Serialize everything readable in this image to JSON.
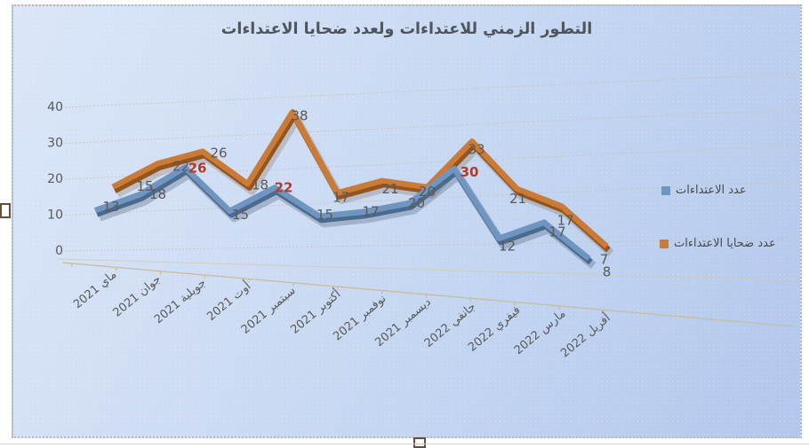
{
  "title": "التطور الزمني للاعتداءات ولعدد ضحايا الاعتداءات",
  "chart_data": {
    "type": "line",
    "style": "3d-line",
    "title": "التطور الزمني للاعتداءات ولعدد ضحايا الاعتداءات",
    "categories": [
      "ماي 2021",
      "جوان 2021",
      "جويلية 2021",
      "أوت 2021",
      "سبتمبر 2021",
      "أكتوبر 2021",
      "نوفمبر 2021",
      "ديسمبر 2021",
      "جانفي 2022",
      "فيفري 2022",
      "مارس 2022",
      "أفريل 2022"
    ],
    "series": [
      {
        "name": "عدد الاعتداءات",
        "color": "#7095c1",
        "dark_color": "#4a6a8e",
        "values": [
          13,
          18,
          26,
          15,
          22,
          15,
          17,
          20,
          30,
          12,
          17,
          8
        ],
        "highlighted_label_indices": [
          2,
          4,
          8
        ],
        "highlight_color": "#b23b27"
      },
      {
        "name": "عدد ضحايا الاعتداءات",
        "color": "#cb7b38",
        "dark_color": "#93541e",
        "values": [
          15,
          22,
          26,
          18,
          38,
          17,
          21,
          20,
          33,
          21,
          17,
          7
        ]
      }
    ],
    "y_axis": {
      "ticks": [
        0,
        10,
        20,
        30,
        40
      ],
      "min": 0,
      "max": 40
    },
    "x_axis_label_rotation": -40,
    "legend_position": "right",
    "grid": true,
    "label_color": "#595959",
    "grid_color": "#cfc29e",
    "background": "#c7d7f2"
  }
}
